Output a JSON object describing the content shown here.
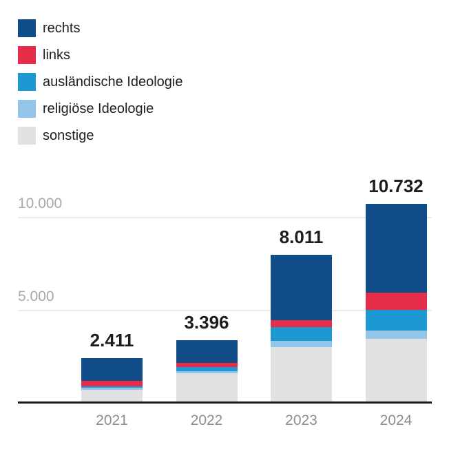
{
  "legend": {
    "items": [
      {
        "label": "rechts",
        "color": "#114E89"
      },
      {
        "label": "links",
        "color": "#E52D4A"
      },
      {
        "label": "ausländische Ideologie",
        "color": "#1E98D3"
      },
      {
        "label": "religiöse Ideologie",
        "color": "#92C5E8"
      },
      {
        "label": "sonstige",
        "color": "#E0E1E3"
      }
    ]
  },
  "chart_data": {
    "type": "bar",
    "stacked": true,
    "categories": [
      "2021",
      "2022",
      "2023",
      "2024"
    ],
    "series": [
      {
        "name": "rechts",
        "color": "#114E89",
        "values": [
          1221,
          1240,
          3555,
          4790
        ]
      },
      {
        "name": "links",
        "color": "#E52D4A",
        "values": [
          285,
          225,
          375,
          920
        ]
      },
      {
        "name": "ausländische Ideologie",
        "color": "#1E98D3",
        "values": [
          100,
          225,
          750,
          1110
        ]
      },
      {
        "name": "religiöse Ideologie",
        "color": "#92C5E8",
        "values": [
          100,
          100,
          310,
          445
        ]
      },
      {
        "name": "sonstige",
        "color": "#E0E1E3",
        "values": [
          705,
          1606,
          3021,
          3467
        ]
      }
    ],
    "stack_order_bottom_to_top": [
      "sonstige",
      "religiöse Ideologie",
      "ausländische Ideologie",
      "links",
      "rechts"
    ],
    "totals": [
      2411,
      3396,
      8011,
      10732
    ],
    "total_labels": [
      "2.411",
      "3.396",
      "8.011",
      "10.732"
    ],
    "y_axis": {
      "ticks": [
        {
          "value": 10000,
          "label": "10.000"
        },
        {
          "value": 5000,
          "label": "5.000"
        }
      ],
      "range": [
        0,
        10800
      ],
      "gridlines": true
    },
    "xlabel": "",
    "ylabel": "",
    "title": "",
    "legend_position": "top-left",
    "number_format": "de-DE (dot as thousands separator)"
  },
  "colors": {
    "background": "#FFFFFF",
    "axis_line": "#1A1A1A",
    "gridline": "#EBEBEB",
    "tick_label": "#A7A7A7",
    "category_label": "#8C8C8C",
    "total_label": "#1D1D1D",
    "legend_text": "#1F1F1F"
  }
}
